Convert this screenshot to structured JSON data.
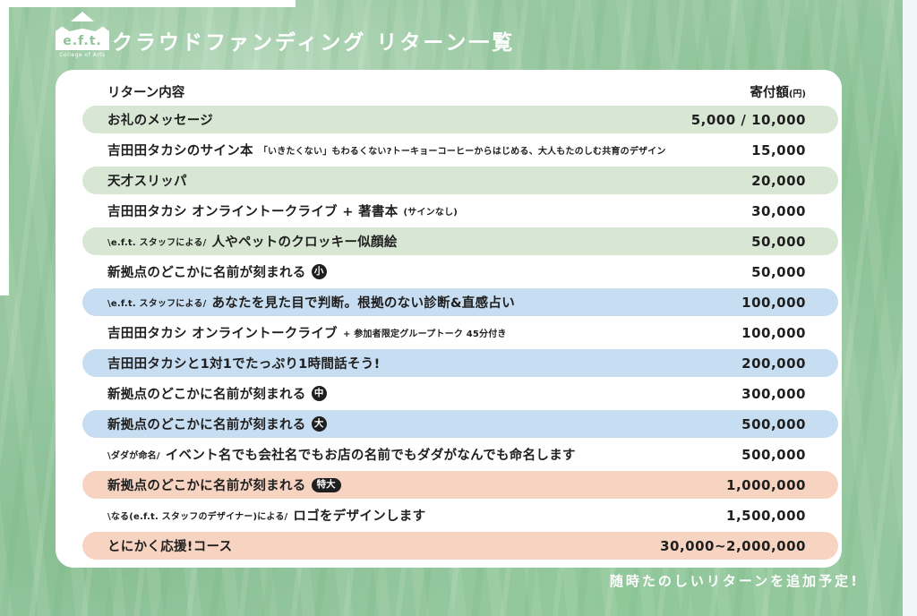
{
  "header": {
    "logo_text": "e.f.t.",
    "logo_subtitle": "College of Arts",
    "title": "クラウドファンディング リターン一覧"
  },
  "table": {
    "col_content": "リターン内容",
    "col_amount": "寄付額",
    "col_amount_unit": "(円)",
    "rows": [
      {
        "color": "green",
        "main": "お礼のメッセージ",
        "amount": "5,000 / 10,000"
      },
      {
        "color": "white",
        "main": "吉田田タカシのサイン本",
        "suffix_small": "「いきたくない」もわるくない?トーキョーコーヒーからはじめる、大人もたのしむ共育のデザイン",
        "amount": "15,000"
      },
      {
        "color": "green",
        "main": "天才スリッパ",
        "amount": "20,000"
      },
      {
        "color": "white",
        "main": "吉田田タカシ オンライントークライブ + 著書本",
        "suffix_small": "(サインなし)",
        "amount": "30,000"
      },
      {
        "color": "green",
        "prefix_small": "\\e.f.t. スタッフによる/",
        "main": "人やペットのクロッキー似顔絵",
        "amount": "50,000"
      },
      {
        "color": "white",
        "main": "新拠点のどこかに名前が刻まれる",
        "badge": "小",
        "badge_shape": "circle",
        "amount": "50,000"
      },
      {
        "color": "blue",
        "prefix_small": "\\e.f.t. スタッフによる/",
        "main": "あなたを見た目で判断。根拠のない診断&直感占い",
        "amount": "100,000"
      },
      {
        "color": "white",
        "main": "吉田田タカシ オンライントークライブ",
        "suffix_small": "+ 参加者限定グループトーク 45分付き",
        "amount": "100,000"
      },
      {
        "color": "blue",
        "main": "吉田田タカシと1対1でたっぷり1時間話そう!",
        "amount": "200,000"
      },
      {
        "color": "white",
        "main": "新拠点のどこかに名前が刻まれる",
        "badge": "中",
        "badge_shape": "circle",
        "amount": "300,000"
      },
      {
        "color": "blue",
        "main": "新拠点のどこかに名前が刻まれる",
        "badge": "大",
        "badge_shape": "circle",
        "amount": "500,000"
      },
      {
        "color": "white",
        "prefix_small": "\\ダダが命名/",
        "main": "イベント名でも会社名でもお店の名前でもダダがなんでも命名します",
        "amount": "500,000"
      },
      {
        "color": "orange",
        "main": "新拠点のどこかに名前が刻まれる",
        "badge": "特大",
        "badge_shape": "pill",
        "amount": "1,000,000"
      },
      {
        "color": "white",
        "prefix_small": "\\なる(e.f.t. スタッフのデザイナー)による/",
        "main": "ロゴをデザインします",
        "amount": "1,500,000"
      },
      {
        "color": "orange",
        "main": "とにかく応援!コース",
        "amount": "30,000~2,000,000"
      }
    ]
  },
  "footer": {
    "note": "随時たのしいリターンを追加予定!"
  },
  "colors": {
    "background_green": "#96c79f",
    "row_green": "#d8e7d4",
    "row_blue": "#c7ddf1",
    "row_orange": "#f6d4c1",
    "badge_black": "#1f1f1f",
    "text": "#1f1f1f"
  }
}
